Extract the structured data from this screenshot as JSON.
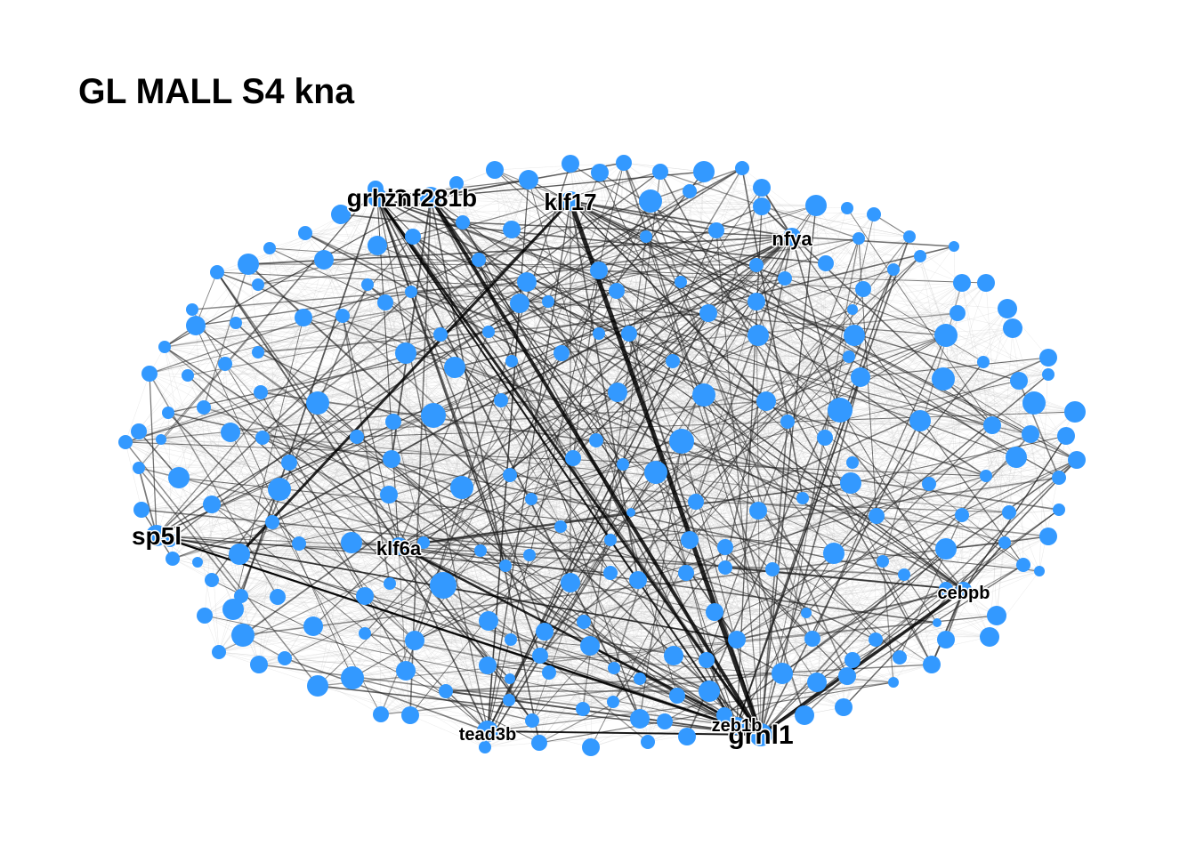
{
  "title": "GL MALL S4 kna",
  "colors": {
    "node": "#3399FF",
    "edge_light": "#BDBDBD",
    "edge_dark": "#000000",
    "label": "#000000",
    "background": "#FFFFFF"
  },
  "labels": {
    "grhl1": "grhl1",
    "zeb1b": "zeb1b",
    "klf17": "klf17",
    "znf281b": "znf281b",
    "grhl3": "grhl3",
    "sp5l": "sp5l",
    "klf6a": "klf6a",
    "cebpb": "cebpb",
    "nfya": "nfya",
    "tead3b": "tead3b"
  }
}
